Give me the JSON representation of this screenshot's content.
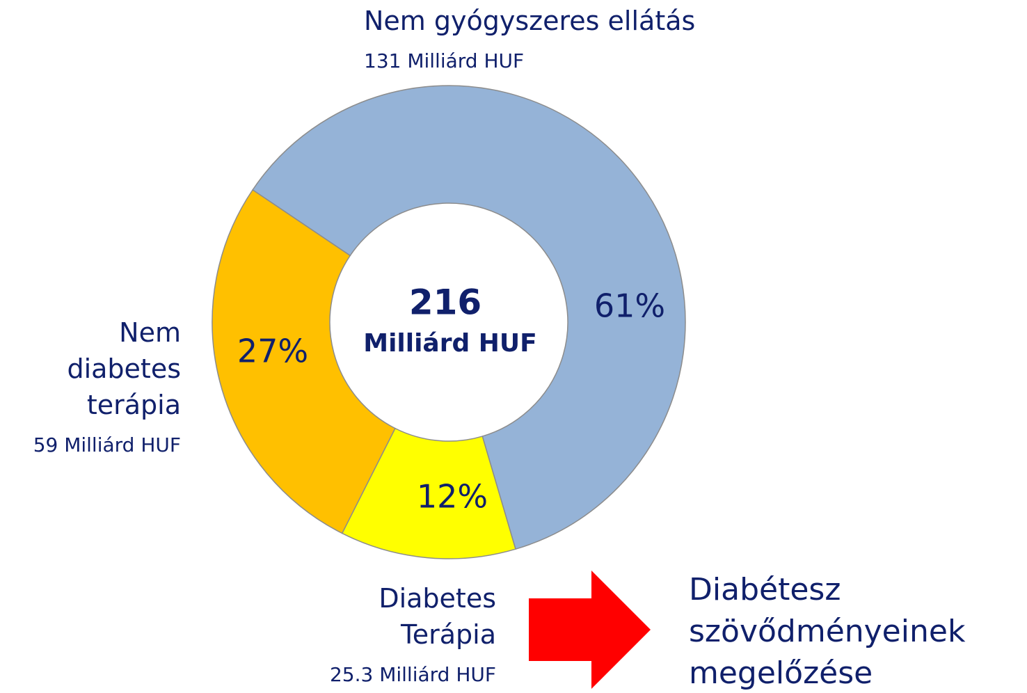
{
  "chart_data": {
    "type": "donut",
    "categories": [
      "Nem gyógyszeres ellátás",
      "Diabetes Terápia",
      "Nem diabetes terápia"
    ],
    "values": [
      61,
      12,
      27
    ],
    "value_labels": [
      "61%",
      "12%",
      "27%"
    ],
    "amounts": [
      "131 Milliárd HUF",
      "25.3 Milliárd HUF",
      "59 Milliárd HUF"
    ],
    "colors": [
      "#95b3d7",
      "#ffff00",
      "#ffc000"
    ],
    "center_value": "216",
    "center_unit": "Milliárd HUF",
    "annotation": "Diabétesz szövődményeinek megelőzése"
  }
}
